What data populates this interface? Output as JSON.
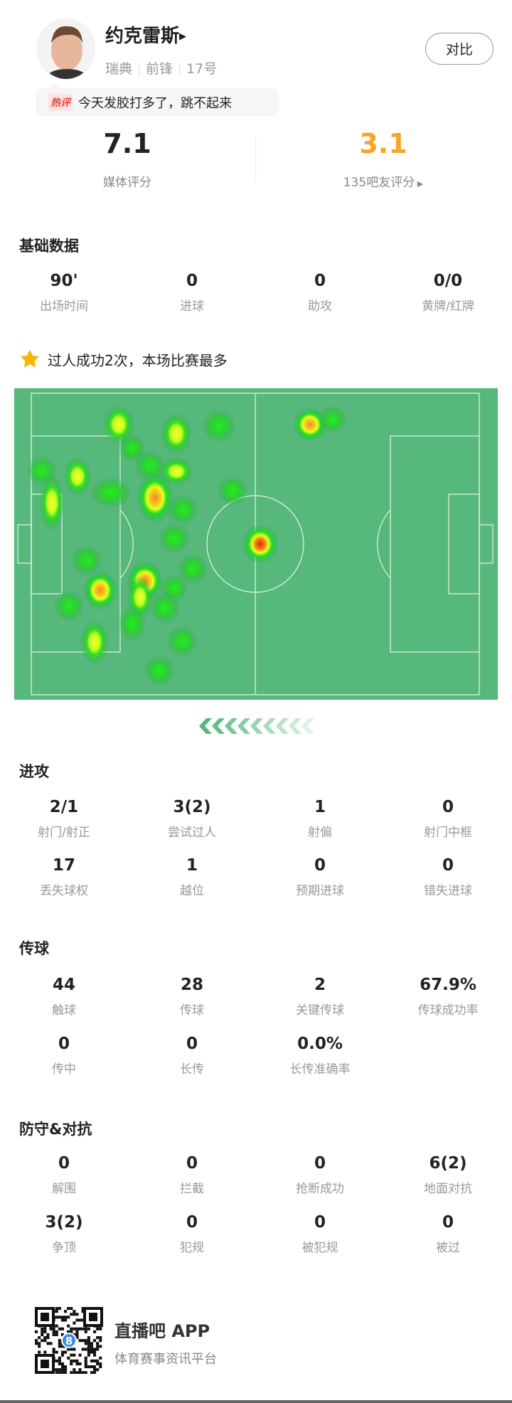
{
  "player": {
    "name": "约克雷斯",
    "country": "瑞典",
    "position": "前锋",
    "number": "17号",
    "compare_label": "对比"
  },
  "hot_comment": {
    "tag": "热评",
    "text": "今天发胶打多了，跳不起来"
  },
  "ratings": {
    "media_score": "7.1",
    "media_label": "媒体评分",
    "fan_score": "3.1",
    "fan_label": "135吧友评分",
    "fan_color": "#f5a623"
  },
  "basic": {
    "title": "基础数据",
    "items": [
      {
        "value": "90'",
        "label": "出场时间"
      },
      {
        "value": "0",
        "label": "进球"
      },
      {
        "value": "0",
        "label": "助攻"
      },
      {
        "value": "0/0",
        "label": "黄牌/红牌"
      }
    ]
  },
  "highlight": {
    "icon": "star-icon",
    "text": "过人成功2次，本场比赛最多"
  },
  "heatmap": {
    "pitch_color": "#57b87b",
    "direction_icon": "chevrons-left-icon"
  },
  "attack": {
    "title": "进攻",
    "items": [
      {
        "value": "2/1",
        "label": "射门/射正"
      },
      {
        "value": "3(2)",
        "label": "尝试过人"
      },
      {
        "value": "1",
        "label": "射偏"
      },
      {
        "value": "0",
        "label": "射门中框"
      },
      {
        "value": "17",
        "label": "丢失球权"
      },
      {
        "value": "1",
        "label": "越位"
      },
      {
        "value": "0",
        "label": "预期进球"
      },
      {
        "value": "0",
        "label": "错失进球"
      }
    ]
  },
  "passing": {
    "title": "传球",
    "items": [
      {
        "value": "44",
        "label": "触球"
      },
      {
        "value": "28",
        "label": "传球"
      },
      {
        "value": "2",
        "label": "关键传球"
      },
      {
        "value": "67.9%",
        "label": "传球成功率"
      },
      {
        "value": "0",
        "label": "传中"
      },
      {
        "value": "0",
        "label": "长传"
      },
      {
        "value": "0.0%",
        "label": "长传准确率"
      }
    ]
  },
  "defense": {
    "title": "防守&对抗",
    "items": [
      {
        "value": "0",
        "label": "解围"
      },
      {
        "value": "0",
        "label": "拦截"
      },
      {
        "value": "0",
        "label": "抢断成功"
      },
      {
        "value": "6(2)",
        "label": "地面对抗"
      },
      {
        "value": "3(2)",
        "label": "争顶"
      },
      {
        "value": "0",
        "label": "犯规"
      },
      {
        "value": "0",
        "label": "被犯规"
      },
      {
        "value": "0",
        "label": "被过"
      }
    ]
  },
  "footer": {
    "app_name": "直播吧 APP",
    "slogan": "体育赛事资讯平台"
  }
}
